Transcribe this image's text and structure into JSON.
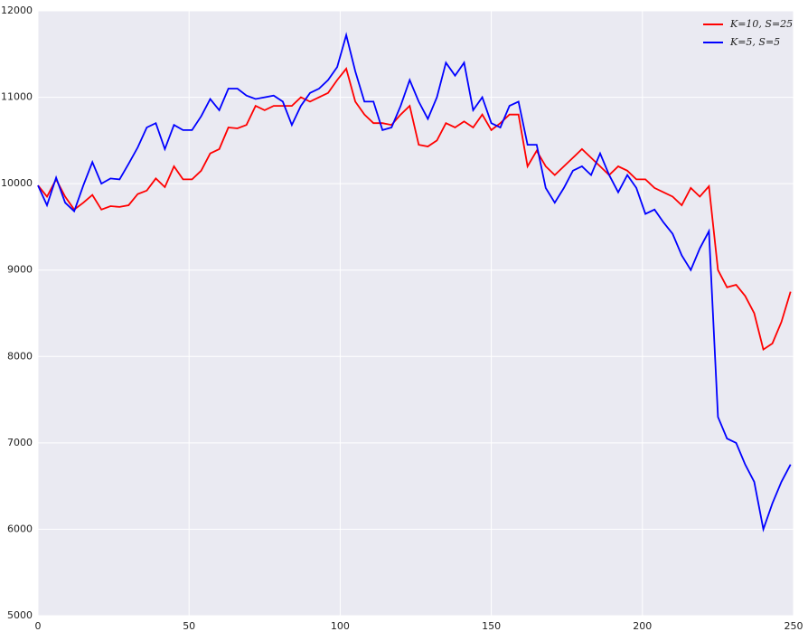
{
  "chart_data": {
    "type": "line",
    "x": [
      0,
      3,
      6,
      9,
      12,
      15,
      18,
      21,
      24,
      27,
      30,
      33,
      36,
      39,
      42,
      45,
      48,
      51,
      54,
      57,
      60,
      63,
      66,
      69,
      72,
      75,
      78,
      81,
      84,
      87,
      90,
      93,
      96,
      99,
      102,
      105,
      108,
      111,
      114,
      117,
      120,
      123,
      126,
      129,
      132,
      135,
      138,
      141,
      144,
      147,
      150,
      153,
      156,
      159,
      162,
      165,
      168,
      171,
      174,
      177,
      180,
      183,
      186,
      189,
      192,
      195,
      198,
      201,
      204,
      207,
      210,
      213,
      216,
      219,
      222,
      225,
      228,
      231,
      234,
      237,
      240,
      243,
      246,
      249
    ],
    "series": [
      {
        "name": "K=10, S=25",
        "color": "#ff0000",
        "values": [
          9980,
          9850,
          10050,
          9850,
          9700,
          9780,
          9870,
          9700,
          9740,
          9730,
          9750,
          9880,
          9920,
          10060,
          9960,
          10200,
          10050,
          10050,
          10150,
          10350,
          10400,
          10650,
          10640,
          10680,
          10900,
          10850,
          10900,
          10900,
          10900,
          11000,
          10950,
          11000,
          11050,
          11200,
          11330,
          10950,
          10800,
          10700,
          10700,
          10680,
          10800,
          10900,
          10450,
          10430,
          10500,
          10700,
          10650,
          10720,
          10650,
          10800,
          10620,
          10700,
          10800,
          10800,
          10200,
          10380,
          10200,
          10100,
          10200,
          10300,
          10400,
          10300,
          10200,
          10100,
          10200,
          10150,
          10050,
          10050,
          9950,
          9900,
          9850,
          9750,
          9950,
          9850,
          9970,
          9000,
          8800,
          8830,
          8700,
          8500,
          8080,
          8150,
          8400,
          8750
        ]
      },
      {
        "name": "K=5, S=5",
        "color": "#0000ff",
        "values": [
          9980,
          9750,
          10070,
          9780,
          9680,
          9980,
          10250,
          10000,
          10060,
          10050,
          10230,
          10420,
          10650,
          10700,
          10400,
          10680,
          10620,
          10620,
          10780,
          10980,
          10850,
          11100,
          11100,
          11020,
          10980,
          11000,
          11020,
          10950,
          10680,
          10900,
          11050,
          11100,
          11200,
          11350,
          11720,
          11300,
          10950,
          10950,
          10620,
          10650,
          10900,
          11200,
          10950,
          10750,
          11000,
          11400,
          11250,
          11400,
          10850,
          11000,
          10700,
          10650,
          10900,
          10950,
          10450,
          10450,
          9950,
          9780,
          9950,
          10150,
          10200,
          10100,
          10350,
          10100,
          9900,
          10100,
          9950,
          9650,
          9700,
          9550,
          9420,
          9170,
          9000,
          9250,
          9450,
          7300,
          7050,
          7000,
          6750,
          6550,
          6000,
          6300,
          6550,
          6750
        ]
      }
    ],
    "xlim": [
      0,
      250
    ],
    "xticks": [
      0,
      50,
      100,
      150,
      200,
      250
    ],
    "ylim": [
      5000,
      12000
    ],
    "yticks": [
      5000,
      6000,
      7000,
      8000,
      9000,
      10000,
      11000,
      12000
    ],
    "grid": true,
    "legend": "upper right"
  }
}
